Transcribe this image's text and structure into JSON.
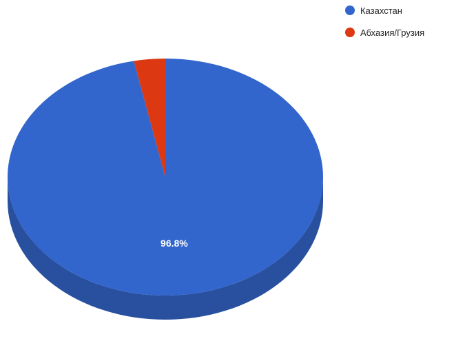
{
  "chart_data": {
    "type": "pie",
    "is_3d": true,
    "legend_position": "top-right",
    "slices": [
      {
        "label": "Казахстан",
        "value": 96.8,
        "color": "#3366cc",
        "data_label": "96.8%"
      },
      {
        "label": "Абхазия/Грузия",
        "value": 3.2,
        "color": "#dc3912",
        "data_label": ""
      }
    ]
  },
  "legend": {
    "items": [
      {
        "label": "Казахстан",
        "color": "#3366cc"
      },
      {
        "label": "Абхазия/Грузия",
        "color": "#dc3912"
      }
    ]
  }
}
